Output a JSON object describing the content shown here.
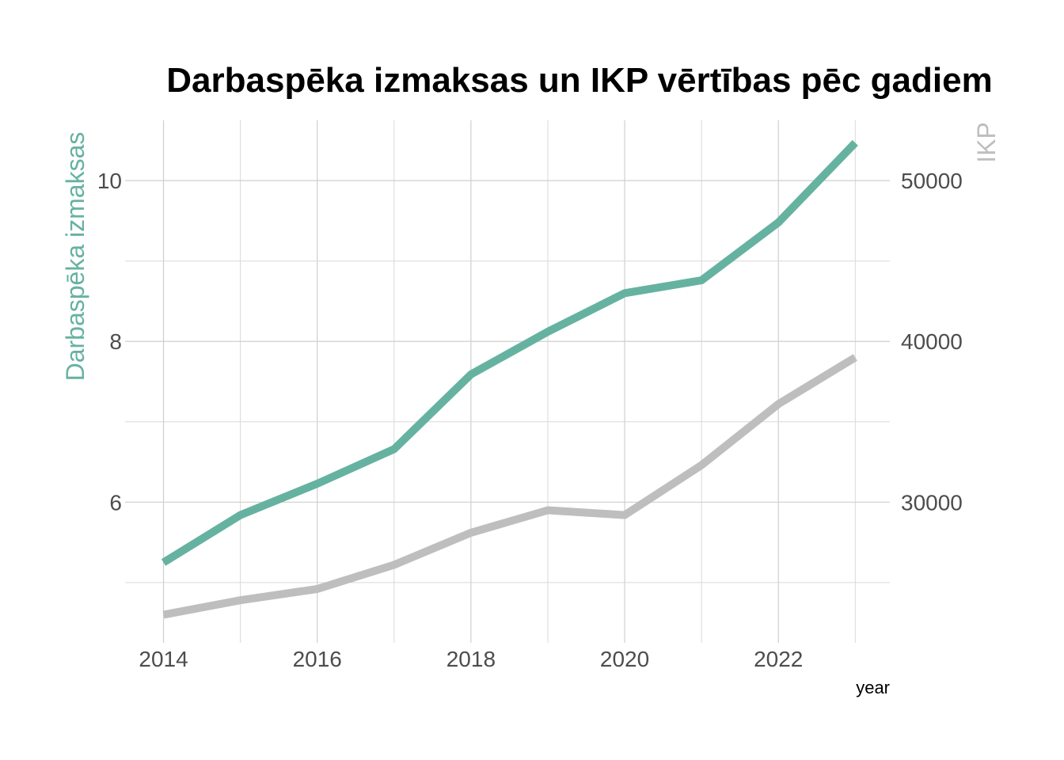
{
  "chart_data": {
    "type": "line",
    "title": "Darbaspēka izmaksas un IKP vērtības pēc gadiem",
    "xlabel": "year",
    "ylabel_left": "Darbaspēka izmaksas",
    "ylabel_right": "IKP",
    "x": [
      2014,
      2015,
      2016,
      2017,
      2018,
      2019,
      2020,
      2021,
      2022,
      2023
    ],
    "x_ticks": [
      "2014",
      "2016",
      "2018",
      "2020",
      "2022"
    ],
    "x_tick_values": [
      2014,
      2016,
      2018,
      2020,
      2022
    ],
    "xlim": [
      2013.5,
      2023.45
    ],
    "y_left_ticks": [
      "6",
      "8",
      "10"
    ],
    "y_left_tick_values": [
      6,
      8,
      10
    ],
    "y_left_lim": [
      4.25,
      10.75
    ],
    "y_right_ticks": [
      "30000",
      "40000",
      "50000"
    ],
    "y_right_tick_values": [
      30000,
      40000,
      50000
    ],
    "y_right_lim": [
      21250,
      53750
    ],
    "grid": true,
    "legend": "none",
    "series": [
      {
        "axis": "left",
        "color": "#66b2a0",
        "values": [
          5.25,
          5.84,
          6.23,
          6.66,
          7.59,
          8.12,
          8.6,
          8.76,
          9.48,
          10.47
        ]
      },
      {
        "axis": "right",
        "color": "#bebebe",
        "values": [
          23000,
          23900,
          24600,
          26100,
          28100,
          29500,
          29200,
          32300,
          36100,
          39000
        ]
      }
    ]
  }
}
